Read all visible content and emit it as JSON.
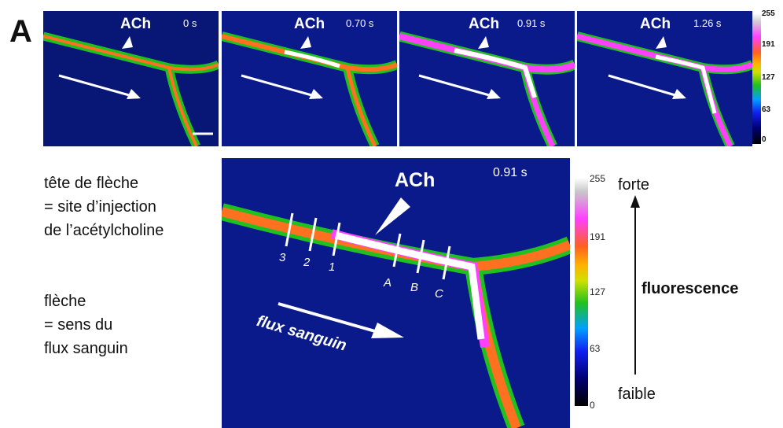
{
  "panel_letter": "A",
  "small_frames": [
    {
      "label": "ACh",
      "time": "0 s"
    },
    {
      "label": "ACh",
      "time": "0.70 s"
    },
    {
      "label": "ACh",
      "time": "0.91 s"
    },
    {
      "label": "ACh",
      "time": "1.26 s"
    }
  ],
  "small_colorbar_ticks": [
    "255",
    "191",
    "127",
    "63",
    "0"
  ],
  "legend": {
    "arrowhead_lines": [
      "tête de flèche",
      "= site d’injection",
      "de l’acétylcholine"
    ],
    "arrow_lines": [
      "flèche",
      "= sens du",
      "flux sanguin"
    ]
  },
  "big_frame": {
    "label": "ACh",
    "time": "0.91 s",
    "cut_labels": [
      "3",
      "2",
      "1",
      "A",
      "B",
      "C"
    ],
    "flow_label": "flux sanguin"
  },
  "big_colorbar_ticks": [
    "255",
    "191",
    "127",
    "63",
    "0"
  ],
  "fluorescence": {
    "high": "forte",
    "title": "fluorescence",
    "low": "faible"
  },
  "colors": {
    "background": "#0a1a8a",
    "vessel_core": "#ffffff",
    "vessel_edge": "#20c020"
  }
}
